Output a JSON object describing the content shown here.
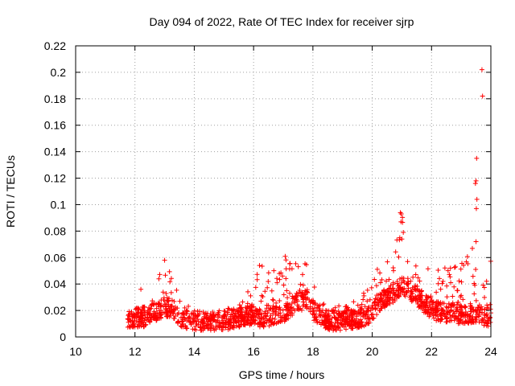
{
  "chart_data": {
    "type": "scatter",
    "title": "Day 094 of 2022, Rate Of TEC Index for receiver sjrp",
    "xlabel": "GPS time / hours",
    "ylabel": "ROTI / TECUs",
    "xlim": [
      10,
      24
    ],
    "ylim": [
      0,
      0.22
    ],
    "xticks": [
      10,
      12,
      14,
      16,
      18,
      20,
      22,
      24
    ],
    "xtick_labels": [
      "10",
      "12",
      "14",
      "16",
      "18",
      "20",
      "22",
      "24"
    ],
    "yticks": [
      0,
      0.02,
      0.04,
      0.06,
      0.08,
      0.1,
      0.12,
      0.14,
      0.16,
      0.18,
      0.2,
      0.22
    ],
    "ytick_labels": [
      "0",
      "0.02",
      "0.04",
      "0.06",
      "0.08",
      "0.1",
      "0.12",
      "0.14",
      "0.16",
      "0.18",
      "0.2",
      "0.22"
    ],
    "grid": true,
    "marker": "+",
    "marker_color": "#ff0000",
    "series": [
      {
        "name": "ROTI",
        "data_source": "dense scatter, approximated by envelope",
        "envelope": [
          {
            "x": 11.75,
            "base": 0.016,
            "peak": 0.024
          },
          {
            "x": 12.2,
            "base": 0.016,
            "peak": 0.026
          },
          {
            "x": 12.5,
            "base": 0.018,
            "peak": 0.032
          },
          {
            "x": 12.8,
            "base": 0.022,
            "peak": 0.045
          },
          {
            "x": 13.0,
            "base": 0.025,
            "peak": 0.058
          },
          {
            "x": 13.3,
            "base": 0.022,
            "peak": 0.045
          },
          {
            "x": 13.6,
            "base": 0.016,
            "peak": 0.028
          },
          {
            "x": 14.0,
            "base": 0.014,
            "peak": 0.022
          },
          {
            "x": 14.5,
            "base": 0.012,
            "peak": 0.02
          },
          {
            "x": 15.0,
            "base": 0.014,
            "peak": 0.022
          },
          {
            "x": 15.5,
            "base": 0.016,
            "peak": 0.024
          },
          {
            "x": 15.9,
            "base": 0.018,
            "peak": 0.04
          },
          {
            "x": 16.3,
            "base": 0.016,
            "peak": 0.054
          },
          {
            "x": 16.8,
            "base": 0.018,
            "peak": 0.05
          },
          {
            "x": 17.0,
            "base": 0.02,
            "peak": 0.063
          },
          {
            "x": 17.5,
            "base": 0.028,
            "peak": 0.055
          },
          {
            "x": 17.8,
            "base": 0.03,
            "peak": 0.057
          },
          {
            "x": 18.0,
            "base": 0.022,
            "peak": 0.04
          },
          {
            "x": 18.5,
            "base": 0.014,
            "peak": 0.024
          },
          {
            "x": 19.0,
            "base": 0.014,
            "peak": 0.024
          },
          {
            "x": 19.5,
            "base": 0.016,
            "peak": 0.028
          },
          {
            "x": 19.9,
            "base": 0.018,
            "peak": 0.04
          },
          {
            "x": 20.3,
            "base": 0.03,
            "peak": 0.063
          },
          {
            "x": 20.7,
            "base": 0.035,
            "peak": 0.06
          },
          {
            "x": 21.0,
            "base": 0.04,
            "peak": 0.094
          },
          {
            "x": 21.4,
            "base": 0.035,
            "peak": 0.065
          },
          {
            "x": 22.0,
            "base": 0.022,
            "peak": 0.05
          },
          {
            "x": 22.5,
            "base": 0.02,
            "peak": 0.06
          },
          {
            "x": 23.0,
            "base": 0.018,
            "peak": 0.055
          },
          {
            "x": 23.4,
            "base": 0.02,
            "peak": 0.07
          },
          {
            "x": 23.7,
            "base": 0.018,
            "peak": 0.06
          },
          {
            "x": 24.0,
            "base": 0.016,
            "peak": 0.06
          }
        ],
        "outliers": [
          {
            "x": 23.7,
            "y": 0.202
          },
          {
            "x": 23.72,
            "y": 0.182
          },
          {
            "x": 23.52,
            "y": 0.135
          },
          {
            "x": 23.5,
            "y": 0.118
          },
          {
            "x": 23.48,
            "y": 0.116
          },
          {
            "x": 23.53,
            "y": 0.104
          },
          {
            "x": 23.51,
            "y": 0.097
          },
          {
            "x": 23.5,
            "y": 0.072
          },
          {
            "x": 20.95,
            "y": 0.094
          },
          {
            "x": 20.98,
            "y": 0.093
          },
          {
            "x": 20.97,
            "y": 0.087
          },
          {
            "x": 20.93,
            "y": 0.075
          },
          {
            "x": 21.0,
            "y": 0.074
          },
          {
            "x": 16.2,
            "y": 0.054
          },
          {
            "x": 13.0,
            "y": 0.058
          },
          {
            "x": 12.2,
            "y": 0.036
          }
        ]
      }
    ]
  }
}
